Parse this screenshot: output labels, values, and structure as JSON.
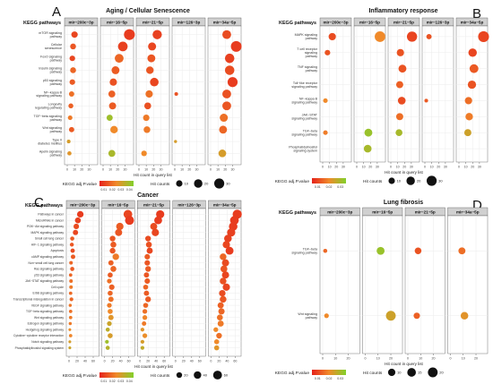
{
  "colors": {
    "low": "#e5221b",
    "mid": "#f08a2a",
    "high": "#83d02b",
    "strip": "#d0d0d0",
    "grid": "#ebebeb"
  },
  "chart_data": [
    {
      "label": "A",
      "type": "scatter",
      "title": "Aging / Cellular Senescence",
      "row_header": "KEGG pathways",
      "xlabel": "Hit count in query list",
      "color_legend_title": "KEGG adj.P.value",
      "color_ticks": [
        "0.01",
        "0.02",
        "0.03",
        "0.04"
      ],
      "color_range": [
        0.005,
        0.045
      ],
      "size_legend_title": "Hit counts",
      "size_ticks": [
        10,
        20,
        30
      ],
      "size_range": [
        1,
        38
      ],
      "xlim": [
        0,
        38
      ],
      "xticks": [
        0,
        10,
        20,
        30
      ],
      "panels": [
        "mir−200c−3p",
        "mir−16−5p",
        "mir−21−5p",
        "mir−126−3p",
        "mir−34a−5p"
      ],
      "pathways": [
        "mTOR signaling\npathway",
        "Cellular\nsenescence",
        "FoxO signaling\npathway",
        "Insulin signaling\npathway",
        "p53 signaling\npathway",
        "NF−kappa B\nsignaling pathway",
        "Longevity\nregulating pathway",
        "TGF−beta signaling\npathway",
        "Wnt signaling\npathway",
        "Type II\ndiabetes mellitus",
        "Apelin signaling\npathway"
      ],
      "points": [
        [
          0,
          0,
          10,
          0.012
        ],
        [
          1,
          0,
          36,
          0.01
        ],
        [
          2,
          0,
          25,
          0.011
        ],
        [
          4,
          0,
          22,
          0.013
        ],
        [
          0,
          1,
          8,
          0.015
        ],
        [
          1,
          1,
          27,
          0.011
        ],
        [
          2,
          1,
          18,
          0.012
        ],
        [
          4,
          1,
          35,
          0.01
        ],
        [
          0,
          2,
          7,
          0.012
        ],
        [
          1,
          2,
          22,
          0.018
        ],
        [
          2,
          2,
          17,
          0.015
        ],
        [
          4,
          2,
          26,
          0.011
        ],
        [
          0,
          3,
          8,
          0.018
        ],
        [
          1,
          3,
          17,
          0.016
        ],
        [
          2,
          3,
          15,
          0.015
        ],
        [
          4,
          3,
          26,
          0.013
        ],
        [
          0,
          4,
          7,
          0.016
        ],
        [
          1,
          4,
          14,
          0.014
        ],
        [
          2,
          4,
          21,
          0.012
        ],
        [
          4,
          4,
          30,
          0.01
        ],
        [
          0,
          5,
          6,
          0.02
        ],
        [
          1,
          5,
          12,
          0.017
        ],
        [
          2,
          5,
          14,
          0.02
        ],
        [
          3,
          5,
          2,
          0.014
        ],
        [
          4,
          5,
          22,
          0.014
        ],
        [
          0,
          6,
          5,
          0.017
        ],
        [
          1,
          6,
          13,
          0.016
        ],
        [
          2,
          6,
          12,
          0.014
        ],
        [
          4,
          6,
          22,
          0.015
        ],
        [
          0,
          7,
          4,
          0.022
        ],
        [
          1,
          7,
          9,
          0.04
        ],
        [
          2,
          7,
          10,
          0.022
        ],
        [
          4,
          7,
          18,
          0.02
        ],
        [
          0,
          8,
          6,
          0.016
        ],
        [
          1,
          8,
          15,
          0.025
        ],
        [
          2,
          8,
          11,
          0.022
        ],
        [
          4,
          8,
          17,
          0.018
        ],
        [
          0,
          9,
          2,
          0.03
        ],
        [
          3,
          9,
          1,
          0.03
        ],
        [
          0,
          10,
          3,
          0.028
        ],
        [
          1,
          10,
          12,
          0.038
        ],
        [
          2,
          10,
          7,
          0.025
        ],
        [
          4,
          10,
          16,
          0.03
        ]
      ]
    },
    {
      "label": "B",
      "type": "scatter",
      "title": "Inflammatory response",
      "row_header": "KEGG pathways",
      "xlabel": "Hit count in query list",
      "color_legend_title": "KEGG adj.P.value",
      "color_ticks": [
        "0.01",
        "0.02",
        "0.03"
      ],
      "color_range": [
        0.005,
        0.035
      ],
      "size_legend_title": "Hit counts",
      "size_ticks": [
        10,
        20,
        30
      ],
      "size_range": [
        1,
        38
      ],
      "xlim": [
        0,
        38
      ],
      "xticks": [
        0,
        10,
        20,
        30
      ],
      "panels": [
        "mir−200c−3p",
        "mir−16−5p",
        "mir−21−5p",
        "mir−126−3p",
        "mir−34a−5p"
      ],
      "pathways": [
        "MAPK signaling\npathway",
        "T cell receptor\nsignaling\npathway",
        "TNF signaling\npathway",
        "Toll−like receptor\nsignaling pathway",
        "NF−kappa B\nsignaling pathway",
        "JAK−STAT\nsignaling pathway",
        "TGF−beta\nsignaling pathway",
        "Phosphatidylinositol\nsignaling system"
      ],
      "points": [
        [
          0,
          0,
          14,
          0.011
        ],
        [
          1,
          0,
          34,
          0.02
        ],
        [
          2,
          0,
          31,
          0.01
        ],
        [
          3,
          0,
          6,
          0.012
        ],
        [
          4,
          0,
          36,
          0.01
        ],
        [
          0,
          1,
          7,
          0.012
        ],
        [
          2,
          1,
          14,
          0.012
        ],
        [
          4,
          1,
          20,
          0.01
        ],
        [
          2,
          2,
          17,
          0.012
        ],
        [
          4,
          2,
          22,
          0.013
        ],
        [
          2,
          3,
          13,
          0.014
        ],
        [
          4,
          3,
          19,
          0.012
        ],
        [
          0,
          4,
          4,
          0.02
        ],
        [
          2,
          4,
          16,
          0.011
        ],
        [
          3,
          4,
          2,
          0.013
        ],
        [
          4,
          4,
          14,
          0.016
        ],
        [
          2,
          5,
          13,
          0.016
        ],
        [
          4,
          5,
          15,
          0.018
        ],
        [
          0,
          6,
          4,
          0.018
        ],
        [
          1,
          6,
          17,
          0.032
        ],
        [
          2,
          6,
          12,
          0.03
        ],
        [
          4,
          6,
          13,
          0.025
        ],
        [
          1,
          7,
          16,
          0.03
        ]
      ]
    },
    {
      "label": "C",
      "type": "scatter",
      "title": "Cancer",
      "row_header": "KEGG pathways",
      "xlabel": "Hit count in query list",
      "color_legend_title": "KEGG adj.P.value",
      "color_ticks": [
        "0.01",
        "0.02",
        "0.03",
        "0.04"
      ],
      "color_range": [
        0.005,
        0.045
      ],
      "size_legend_title": "Hit counts",
      "size_ticks": [
        20,
        40,
        60
      ],
      "size_range": [
        1,
        68
      ],
      "xlim": [
        0,
        68
      ],
      "xticks": [
        0,
        20,
        40,
        60
      ],
      "panels": [
        "mir−200c−3p",
        "mir−16−5p",
        "mir−21−5p",
        "mir−126−3p",
        "mir−34a−5p"
      ],
      "pathways": [
        "Pathways in cancer",
        "MicroRNAs in cancer",
        "PI3K−Akt signaling pathway",
        "MAPK signaling pathway",
        "Small cell lung cancer",
        "HIF−1 signaling pathway",
        "Apoptosis",
        "cAMP signaling pathway",
        "Non−small cell lung cancer",
        "Ras signaling pathway",
        "p53 signaling pathway",
        "JAK−STAT signaling pathway",
        "Cell cycle",
        "ErbB signaling pathway",
        "Transcriptional misregulation in cancer",
        "VEGF signaling pathway",
        "TGF−beta signaling pathway",
        "Wnt signaling pathway",
        "Estrogen signaling pathway",
        "Hedgehog signaling pathway",
        "Cytokine−cytokine receptor interaction",
        "Notch signaling pathway",
        "Phosphatidylinositol signaling system"
      ],
      "points": [
        [
          0,
          0,
          28,
          0.01
        ],
        [
          1,
          0,
          58,
          0.012
        ],
        [
          2,
          0,
          50,
          0.01
        ],
        [
          4,
          0,
          65,
          0.01
        ],
        [
          0,
          1,
          22,
          0.011
        ],
        [
          1,
          1,
          62,
          0.01
        ],
        [
          2,
          1,
          45,
          0.01
        ],
        [
          4,
          1,
          58,
          0.01
        ],
        [
          0,
          2,
          18,
          0.013
        ],
        [
          1,
          2,
          38,
          0.016
        ],
        [
          2,
          2,
          34,
          0.013
        ],
        [
          4,
          2,
          55,
          0.01
        ],
        [
          0,
          3,
          16,
          0.012
        ],
        [
          1,
          3,
          35,
          0.015
        ],
        [
          2,
          3,
          38,
          0.012
        ],
        [
          4,
          3,
          50,
          0.011
        ],
        [
          0,
          4,
          8,
          0.016
        ],
        [
          1,
          4,
          20,
          0.015
        ],
        [
          2,
          4,
          20,
          0.013
        ],
        [
          4,
          4,
          42,
          0.011
        ],
        [
          0,
          5,
          7,
          0.015
        ],
        [
          1,
          5,
          22,
          0.016
        ],
        [
          2,
          5,
          22,
          0.014
        ],
        [
          4,
          5,
          38,
          0.012
        ],
        [
          0,
          6,
          9,
          0.013
        ],
        [
          1,
          6,
          20,
          0.015
        ],
        [
          2,
          6,
          24,
          0.012
        ],
        [
          4,
          6,
          46,
          0.01
        ],
        [
          0,
          7,
          10,
          0.016
        ],
        [
          1,
          7,
          28,
          0.022
        ],
        [
          2,
          7,
          18,
          0.016
        ],
        [
          4,
          7,
          30,
          0.018
        ],
        [
          0,
          8,
          5,
          0.018
        ],
        [
          1,
          8,
          16,
          0.017
        ],
        [
          2,
          8,
          18,
          0.015
        ],
        [
          4,
          8,
          36,
          0.013
        ],
        [
          0,
          9,
          8,
          0.016
        ],
        [
          1,
          9,
          22,
          0.018
        ],
        [
          2,
          9,
          20,
          0.016
        ],
        [
          4,
          9,
          32,
          0.015
        ],
        [
          0,
          10,
          4,
          0.018
        ],
        [
          1,
          10,
          14,
          0.016
        ],
        [
          2,
          10,
          16,
          0.015
        ],
        [
          4,
          10,
          36,
          0.012
        ],
        [
          0,
          11,
          5,
          0.02
        ],
        [
          1,
          11,
          12,
          0.02
        ],
        [
          2,
          11,
          18,
          0.016
        ],
        [
          4,
          11,
          30,
          0.014
        ],
        [
          0,
          12,
          5,
          0.022
        ],
        [
          1,
          12,
          18,
          0.017
        ],
        [
          2,
          12,
          14,
          0.018
        ],
        [
          4,
          12,
          38,
          0.012
        ],
        [
          0,
          13,
          4,
          0.019
        ],
        [
          1,
          13,
          14,
          0.018
        ],
        [
          2,
          13,
          16,
          0.016
        ],
        [
          4,
          13,
          28,
          0.013
        ],
        [
          0,
          14,
          6,
          0.018
        ],
        [
          1,
          14,
          16,
          0.02
        ],
        [
          2,
          14,
          20,
          0.016
        ],
        [
          4,
          14,
          30,
          0.015
        ],
        [
          0,
          15,
          3,
          0.021
        ],
        [
          1,
          15,
          12,
          0.022
        ],
        [
          2,
          15,
          14,
          0.018
        ],
        [
          4,
          15,
          24,
          0.017
        ],
        [
          0,
          16,
          4,
          0.02
        ],
        [
          1,
          16,
          14,
          0.025
        ],
        [
          2,
          16,
          12,
          0.02
        ],
        [
          4,
          16,
          26,
          0.018
        ],
        [
          0,
          17,
          4,
          0.022
        ],
        [
          1,
          17,
          16,
          0.028
        ],
        [
          2,
          17,
          12,
          0.024
        ],
        [
          4,
          17,
          22,
          0.02
        ],
        [
          0,
          18,
          3,
          0.022
        ],
        [
          1,
          18,
          12,
          0.032
        ],
        [
          2,
          18,
          10,
          0.022
        ],
        [
          4,
          18,
          24,
          0.022
        ],
        [
          0,
          19,
          2,
          0.026
        ],
        [
          1,
          19,
          8,
          0.035
        ],
        [
          2,
          19,
          6,
          0.028
        ],
        [
          4,
          19,
          12,
          0.025
        ],
        [
          0,
          20,
          4,
          0.024
        ],
        [
          1,
          20,
          14,
          0.03
        ],
        [
          2,
          20,
          12,
          0.026
        ],
        [
          4,
          20,
          20,
          0.02
        ],
        [
          0,
          21,
          2,
          0.03
        ],
        [
          1,
          21,
          6,
          0.04
        ],
        [
          2,
          21,
          6,
          0.03
        ],
        [
          4,
          21,
          14,
          0.025
        ],
        [
          0,
          22,
          2,
          0.032
        ],
        [
          1,
          22,
          8,
          0.036
        ],
        [
          2,
          22,
          6,
          0.034
        ],
        [
          4,
          22,
          14,
          0.028
        ]
      ]
    },
    {
      "label": "D",
      "type": "scatter",
      "title": "Lung fibrosis",
      "row_header": "KEGG pathways",
      "xlabel": "Hit count in query list",
      "color_legend_title": "KEGG adj.P.value",
      "color_ticks": [
        "0.01",
        "0.02",
        "0.03"
      ],
      "color_range": [
        0.005,
        0.035
      ],
      "size_legend_title": "Hit counts",
      "size_ticks": [
        10,
        15,
        20
      ],
      "size_range": [
        1,
        27
      ],
      "xlim": [
        0,
        27
      ],
      "xticks": [
        0,
        10,
        20
      ],
      "panels": [
        "mir−200c−3p",
        "mir−16−5p",
        "mir−21−5p",
        "mir−34a−5p"
      ],
      "pathways": [
        "TGF−beta\nsignaling pathway",
        "Wnt signaling\npathway"
      ],
      "points": [
        [
          0,
          0,
          2,
          0.015
        ],
        [
          1,
          0,
          12,
          0.032
        ],
        [
          2,
          0,
          8,
          0.012
        ],
        [
          3,
          0,
          9,
          0.016
        ],
        [
          0,
          1,
          3,
          0.02
        ],
        [
          1,
          1,
          20,
          0.025
        ],
        [
          2,
          1,
          7,
          0.014
        ],
        [
          3,
          1,
          11,
          0.022
        ]
      ]
    }
  ]
}
